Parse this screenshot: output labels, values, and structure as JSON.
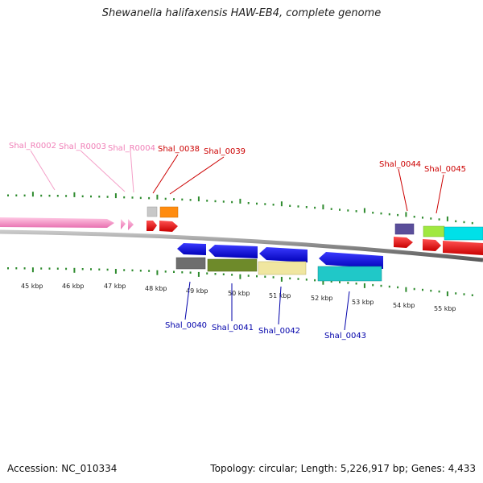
{
  "title": "Shewanella halifaxensis HAW-EB4, complete genome",
  "accession": "Accession: NC_010334",
  "stats": "Topology: circular; Length: 5,226,917 bp; Genes: 4,433",
  "colors": {
    "ticks": "#2e8b2e",
    "backbone": "#7a7a7a",
    "rna_label": "#f080b8",
    "forward_label": "#cc0000",
    "reverse_label": "#0000aa"
  },
  "kbp_labels": [
    "45 kbp",
    "46 kbp",
    "47 kbp",
    "48 kbp",
    "49 kbp",
    "50 kbp",
    "51 kbp",
    "52 kbp",
    "53 kbp",
    "54 kbp",
    "55 kbp"
  ],
  "forward_gene_labels": [
    "Shal_R0002",
    "Shal_R0003",
    "Shal_R0004",
    "Shal_0038",
    "Shal_0039",
    "Shal_0044",
    "Shal_0045"
  ],
  "reverse_gene_labels": [
    "Shal_0040",
    "Shal_0041",
    "Shal_0042",
    "Shal_0043"
  ]
}
